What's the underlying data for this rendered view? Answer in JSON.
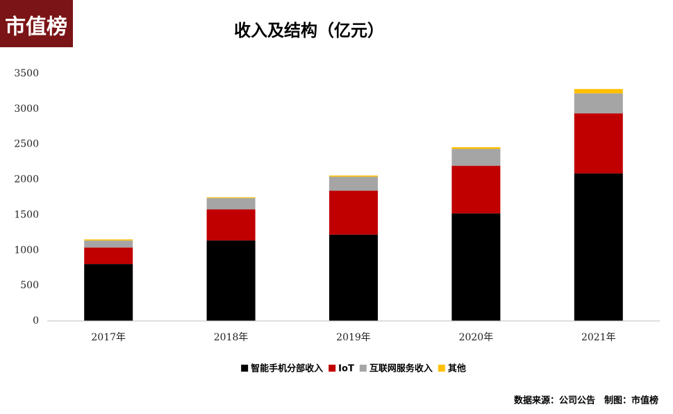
{
  "logo": "市值榜",
  "chart_data": {
    "type": "stacked-bar",
    "title": "收入及结构（亿元）",
    "categories": [
      "2017年",
      "2018年",
      "2019年",
      "2020年",
      "2021年"
    ],
    "series": [
      {
        "name": "智能手机分部收入",
        "color": "#000000",
        "values": [
          805,
          1139,
          1222,
          1522,
          2088
        ]
      },
      {
        "name": "IoT",
        "color": "#c00000",
        "values": [
          234,
          439,
          621,
          674,
          850
        ]
      },
      {
        "name": "互联网服务收入",
        "color": "#a5a5a5",
        "values": [
          99,
          160,
          198,
          238,
          283
        ]
      },
      {
        "name": "其他",
        "color": "#ffc000",
        "values": [
          16,
          11,
          17,
          25,
          61
        ]
      }
    ],
    "ylim": [
      0,
      3500
    ],
    "yticks": [
      0,
      500,
      1000,
      1500,
      2000,
      2500,
      3000,
      3500
    ],
    "legend": "bottom",
    "grid": false,
    "source": "数据来源：公司公告　制图：市值榜"
  }
}
